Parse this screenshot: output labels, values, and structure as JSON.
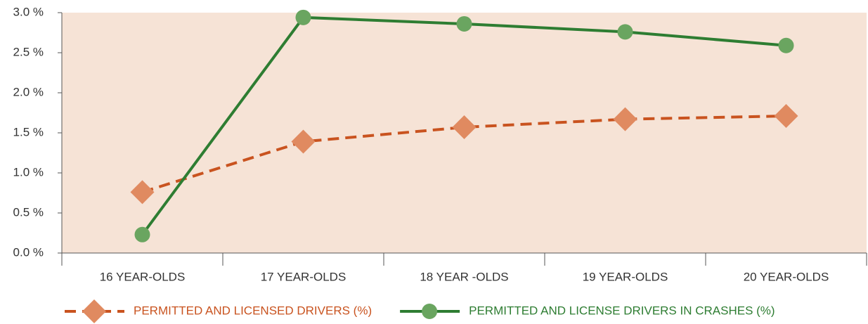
{
  "chart_data": {
    "type": "line",
    "categories": [
      "16 YEAR-OLDS",
      "17 YEAR-OLDS",
      "18 YEAR -OLDS",
      "19 YEAR-OLDS",
      "20 YEAR-OLDS"
    ],
    "series": [
      {
        "name": "PERMITTED AND LICENSED DRIVERS (%)",
        "color": "#c9531f",
        "marker_color": "#e08a60",
        "marker": "diamond",
        "dashed": true,
        "values": [
          0.76,
          1.39,
          1.57,
          1.67,
          1.71
        ]
      },
      {
        "name": "PERMITTED AND LICENSE DRIVERS IN CRASHES (%)",
        "color": "#2e7d32",
        "marker_color": "#6aa560",
        "marker": "circle",
        "dashed": false,
        "values": [
          0.23,
          2.94,
          2.86,
          2.76,
          2.59
        ]
      }
    ],
    "ylim": [
      0,
      3
    ],
    "yticks": [
      {
        "value": 0,
        "label": "0.0 %"
      },
      {
        "value": 0.5,
        "label": "0.5 %"
      },
      {
        "value": 1,
        "label": "1.0 %"
      },
      {
        "value": 1.5,
        "label": "1.5 %"
      },
      {
        "value": 2,
        "label": "2.0 %"
      },
      {
        "value": 2.5,
        "label": "2.5 %"
      },
      {
        "value": 3,
        "label": "3.0 %"
      }
    ],
    "background": "#f6e3d6",
    "legend": "bottom"
  }
}
